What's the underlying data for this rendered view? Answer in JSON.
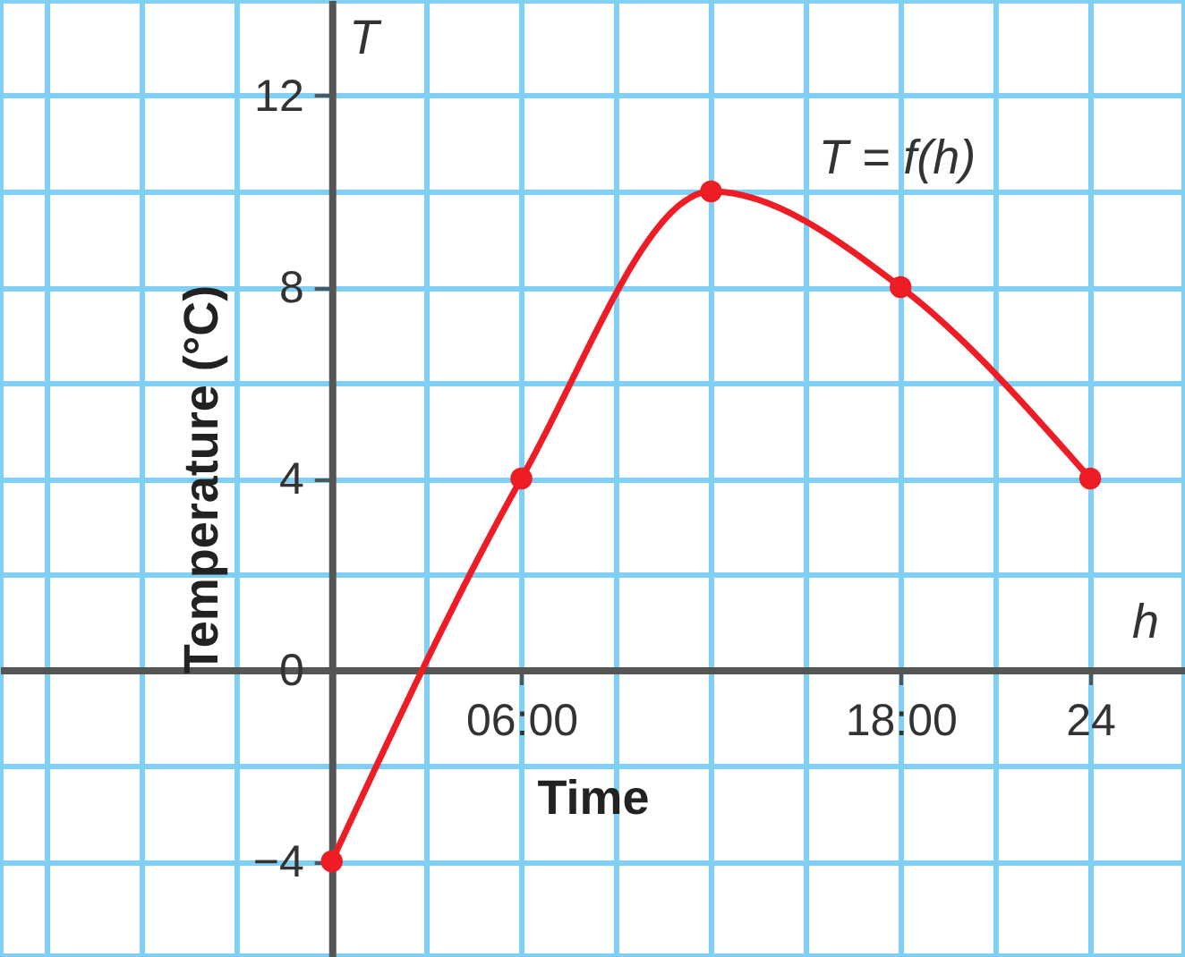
{
  "chart_data": {
    "type": "line",
    "xlabel": "Time",
    "ylabel": "Temperature (°C)",
    "x": [
      0,
      6,
      12,
      18,
      24
    ],
    "series": [
      {
        "color": "#ee1c25",
        "values": [
          -4,
          4,
          10,
          8,
          4
        ]
      }
    ],
    "xlim": [
      -10.5,
      27
    ],
    "ylim": [
      -6,
      14
    ],
    "xticks": [
      {
        "value": -9,
        "label": null
      },
      {
        "value": -6,
        "label": null
      },
      {
        "value": -3,
        "label": null
      },
      {
        "value": 3,
        "label": null
      },
      {
        "value": 6,
        "label": "06:00"
      },
      {
        "value": 9,
        "label": null
      },
      {
        "value": 12,
        "label": null
      },
      {
        "value": 15,
        "label": null
      },
      {
        "value": 18,
        "label": "18:00"
      },
      {
        "value": 21,
        "label": null
      },
      {
        "value": 24,
        "label": "24"
      },
      {
        "value": 27,
        "label": null
      }
    ],
    "yticks": [
      {
        "value": -6,
        "label": null
      },
      -4,
      {
        "value": -2,
        "label": null
      },
      0,
      {
        "value": 2,
        "label": null
      },
      4,
      {
        "value": 6,
        "label": null
      },
      8,
      {
        "value": 10,
        "label": null
      },
      12,
      {
        "value": 14,
        "label": null
      }
    ],
    "annotations": [
      "T",
      "h",
      "T = f(h)"
    ],
    "grid": true,
    "marker": "circle",
    "line_style": "solid"
  }
}
